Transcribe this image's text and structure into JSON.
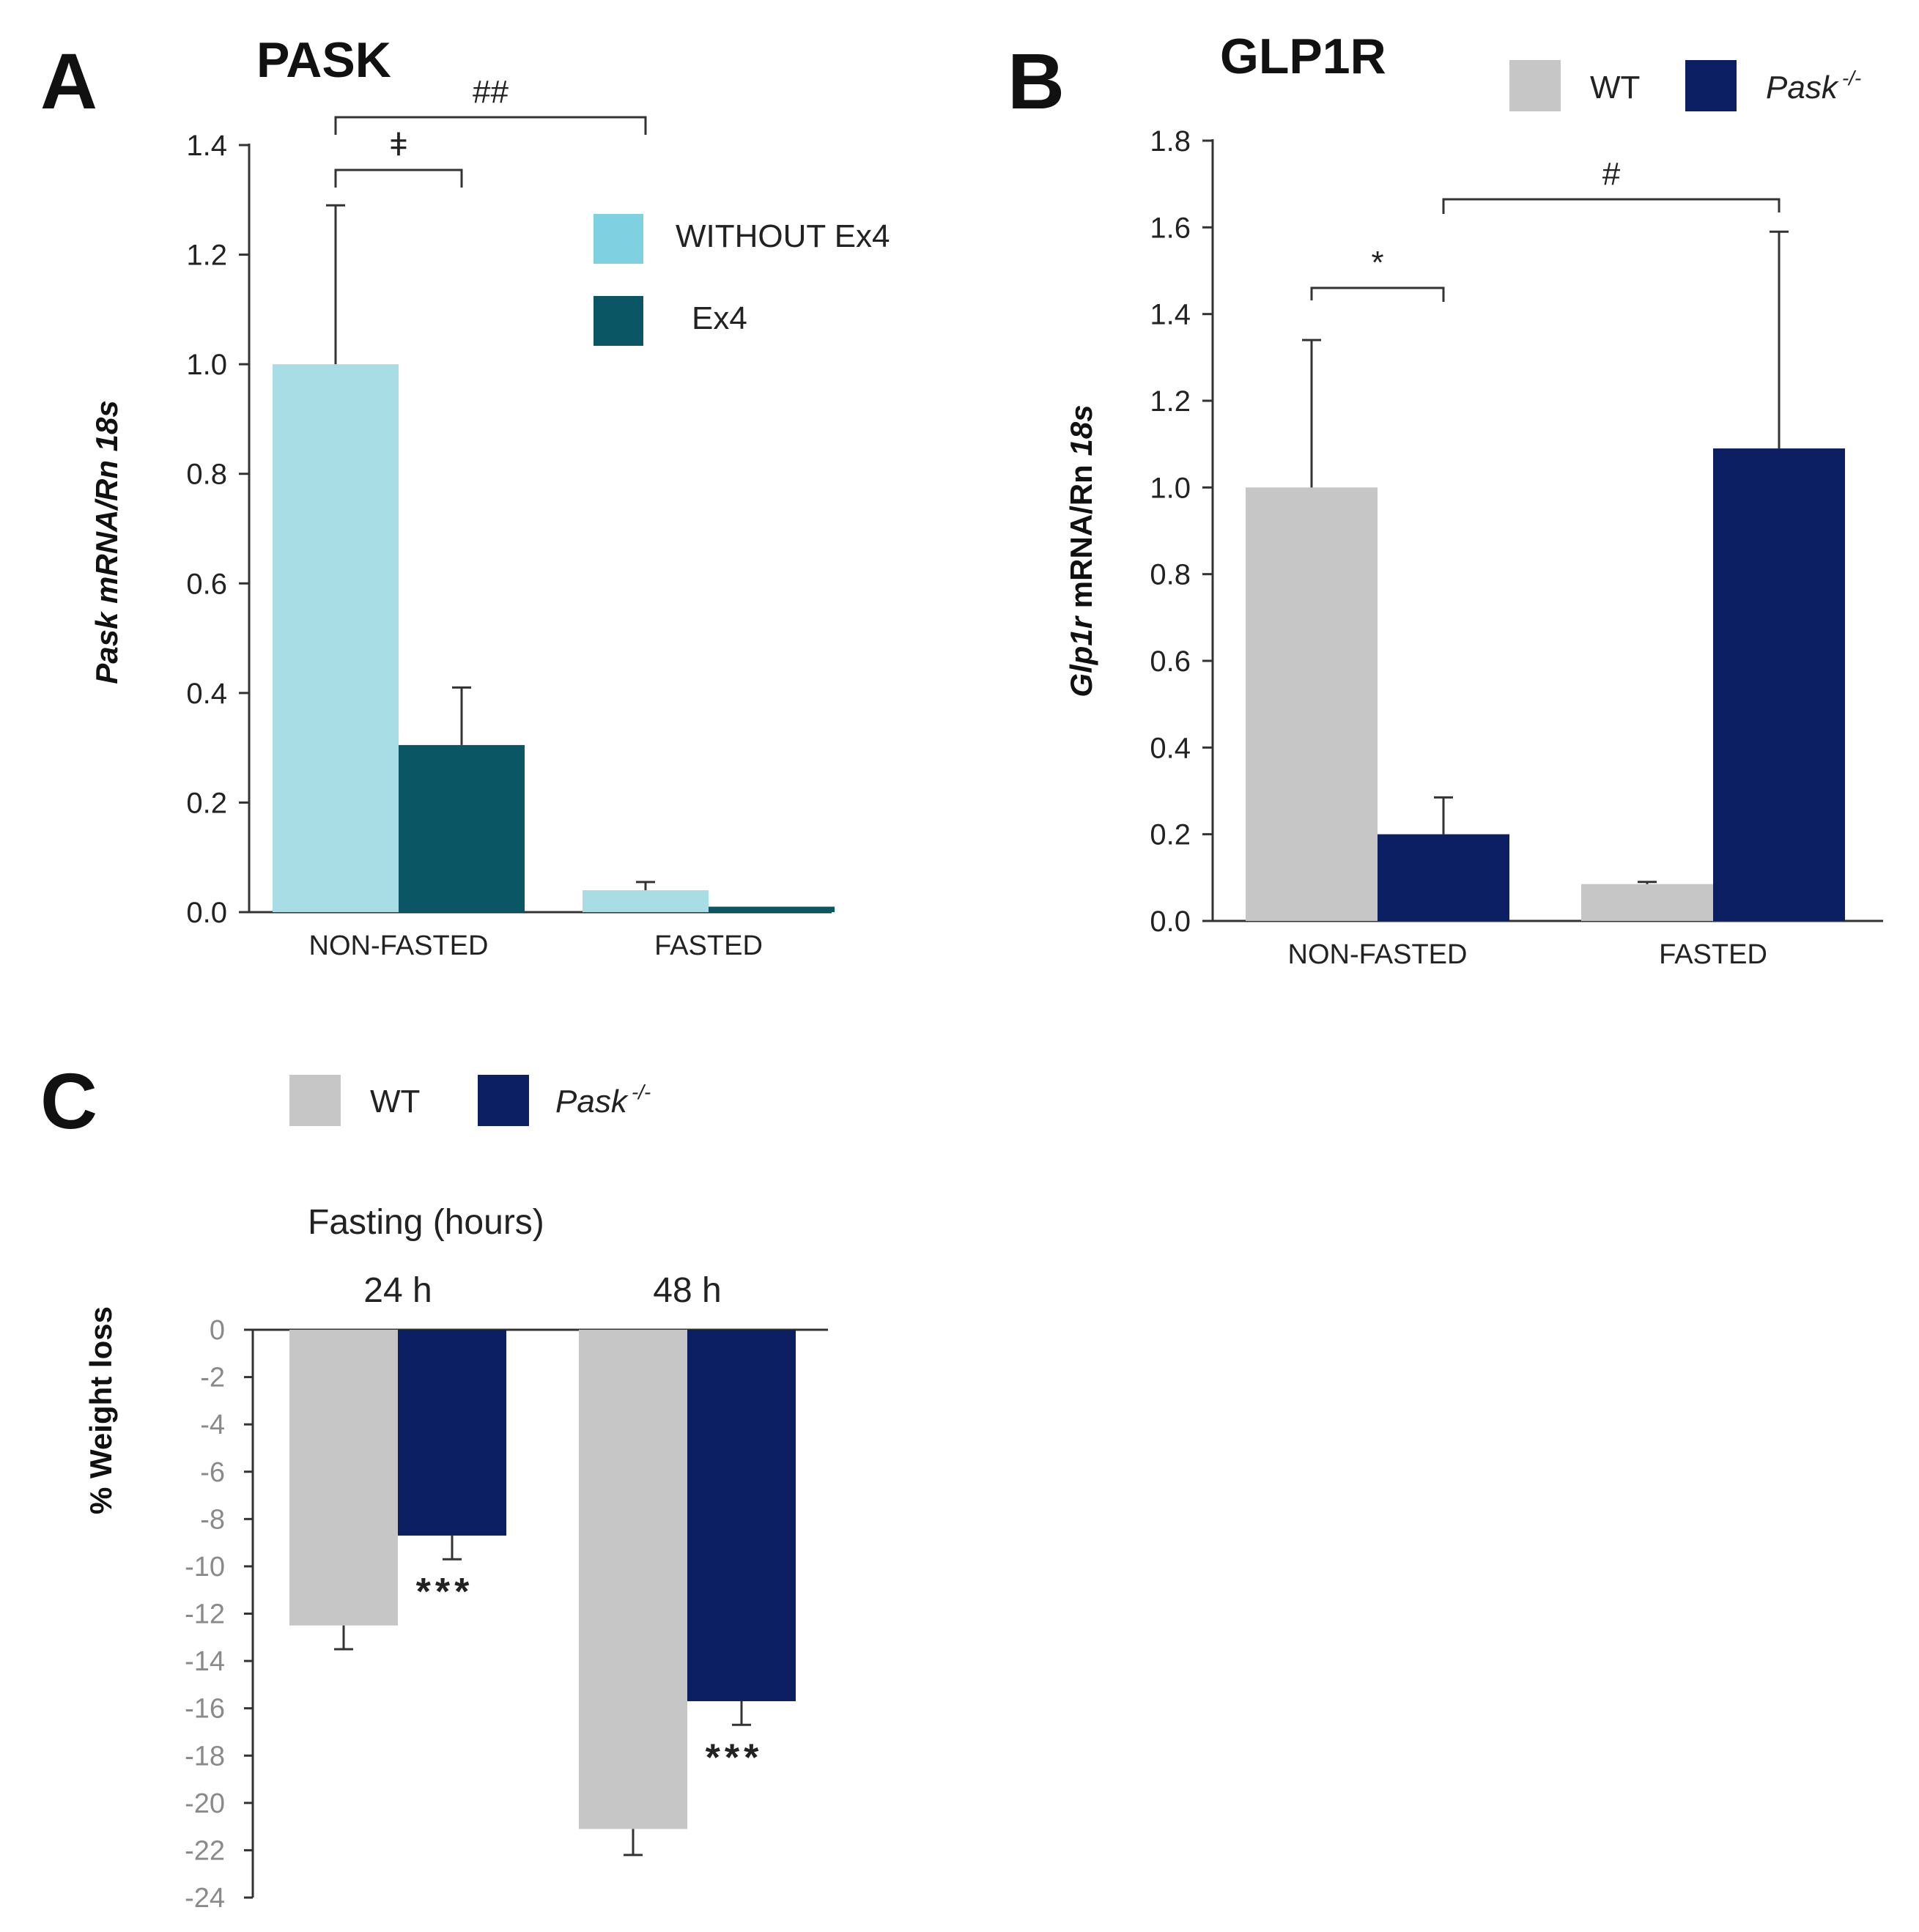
{
  "chart_data": [
    {
      "panel": "A",
      "type": "bar",
      "title": "PASK",
      "ylabel_italic": "Pask",
      "ylabel_rest": " mRNA/Rn 18s",
      "ylim": [
        0,
        1.4
      ],
      "yticks": [
        "0.0",
        "0.2",
        "0.4",
        "0.6",
        "0.8",
        "1.0",
        "1.2",
        "1.4"
      ],
      "categories": [
        "NON-FASTED",
        "FASTED"
      ],
      "series": [
        {
          "name": "WITHOUT Ex4",
          "color": "#a8dde6",
          "legend_color": "#7fd0e0",
          "values": [
            1.0,
            0.04
          ],
          "errors": [
            0.29,
            0.015
          ]
        },
        {
          "name": "Ex4",
          "color": "#0b5665",
          "legend_color": "#0b5665",
          "values": [
            0.305,
            0.01
          ],
          "errors": [
            0.105,
            0.0
          ]
        }
      ],
      "annotations": [
        {
          "label": "ǂ",
          "from": [
            0,
            0
          ],
          "to": [
            0,
            1
          ]
        },
        {
          "label": "##",
          "from": [
            0,
            0
          ],
          "to": [
            1,
            0
          ]
        }
      ]
    },
    {
      "panel": "B",
      "type": "bar",
      "title": "GLP1R",
      "ylabel_italic": "Glp1r",
      "ylabel_rest": " mRNA/Rn ",
      "ylabel_italic2": "18s",
      "ylim": [
        0,
        1.8
      ],
      "yticks": [
        "0.0",
        "0.2",
        "0.4",
        "0.6",
        "0.8",
        "1.0",
        "1.2",
        "1.4",
        "1.6",
        "1.8"
      ],
      "categories": [
        "NON-FASTED",
        "FASTED"
      ],
      "series": [
        {
          "name": "WT",
          "color": "#c6c6c6",
          "values": [
            1.0,
            0.085
          ],
          "errors": [
            0.34,
            0.005
          ]
        },
        {
          "name": "Pask",
          "superscript": "-/-",
          "color": "#0d1f63",
          "values": [
            0.2,
            1.09
          ],
          "errors": [
            0.085,
            0.5
          ]
        }
      ],
      "annotations": [
        {
          "label": "*",
          "from": [
            0,
            0
          ],
          "to": [
            0,
            1
          ]
        },
        {
          "label": "#",
          "from": [
            0,
            1
          ],
          "to": [
            1,
            1
          ]
        }
      ]
    },
    {
      "panel": "C",
      "type": "bar",
      "title": "Fasting (hours)",
      "ylabel": "% Weight loss",
      "ylim": [
        -24,
        0
      ],
      "yticks": [
        "0",
        "-2",
        "-4",
        "-6",
        "-8",
        "-10",
        "-12",
        "-14",
        "-16",
        "-18",
        "-20",
        "-22",
        "-24"
      ],
      "categories": [
        "24 h",
        "48 h"
      ],
      "series": [
        {
          "name": "WT",
          "color": "#c6c6c6",
          "values": [
            -12.5,
            -21.1
          ],
          "errors": [
            1.0,
            1.1
          ]
        },
        {
          "name": "Pask",
          "superscript": "-/-",
          "color": "#0d1f63",
          "values": [
            -8.7,
            -15.7
          ],
          "errors": [
            1.0,
            1.0
          ]
        }
      ],
      "annotations": [
        {
          "label": "***",
          "category": 0
        },
        {
          "label": "***",
          "category": 1
        }
      ]
    }
  ]
}
